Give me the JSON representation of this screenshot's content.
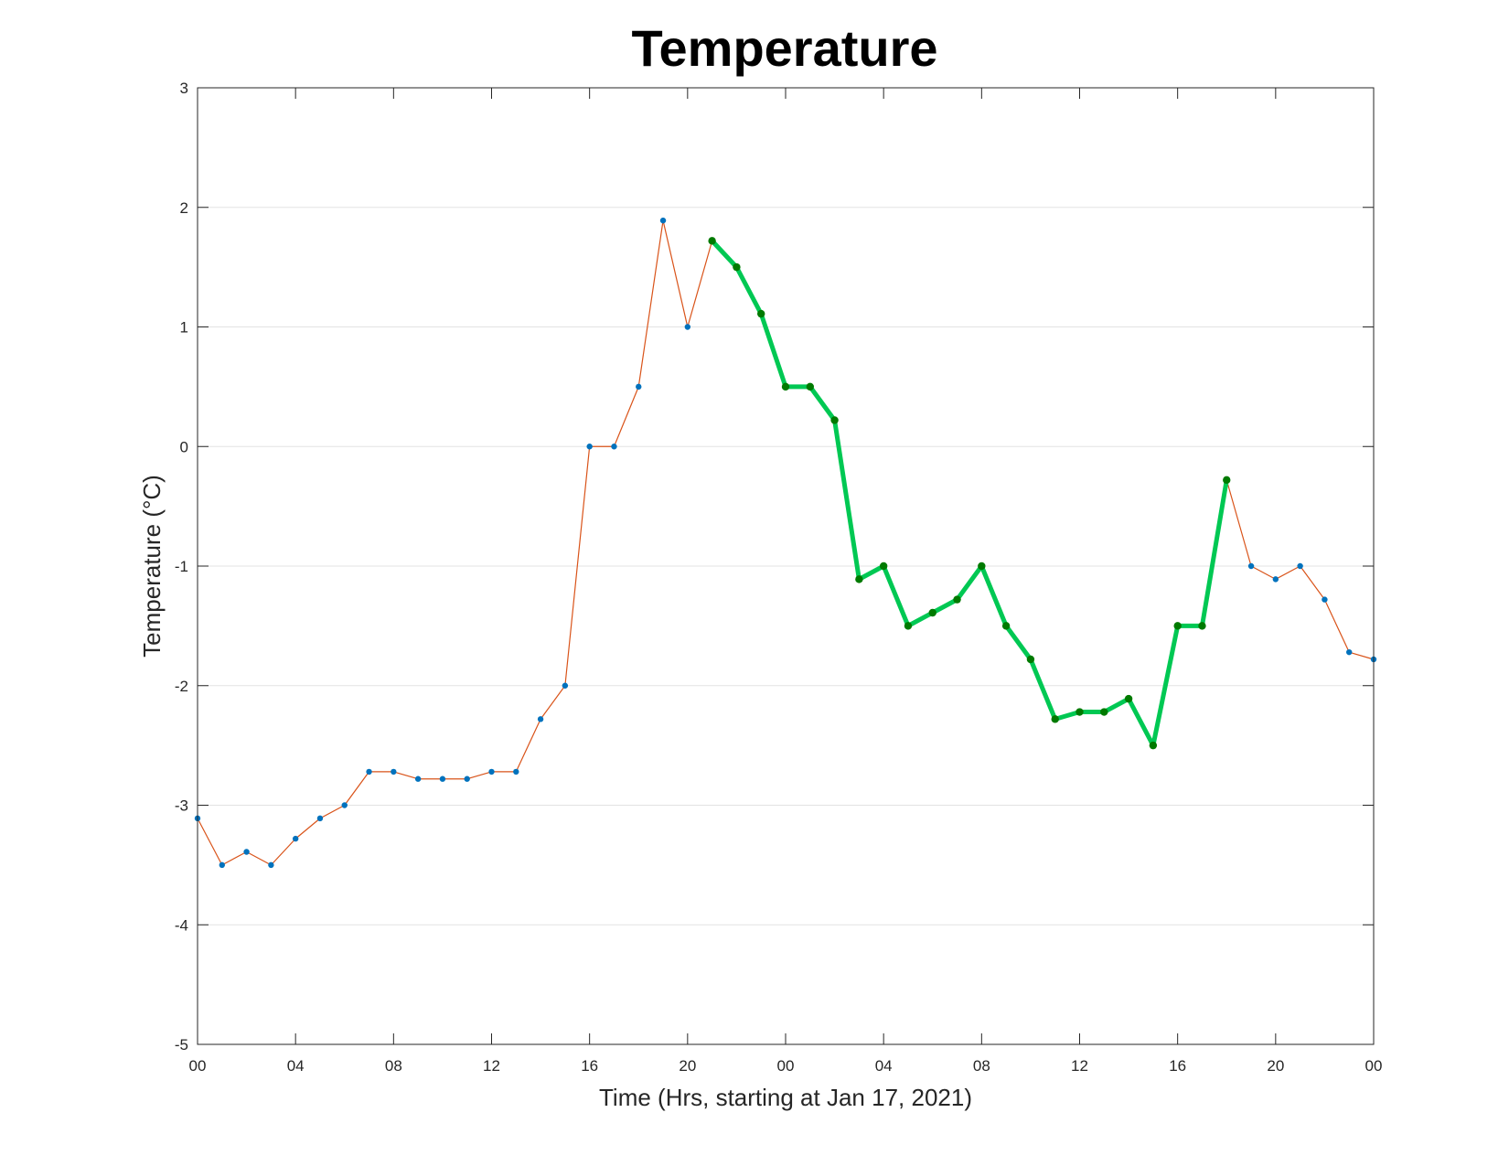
{
  "chart_data": {
    "type": "line",
    "title": "Temperature",
    "xlabel": "Time (Hrs, starting at Jan 17, 2021)",
    "ylabel": "Temperature (°C)",
    "x_tick_labels": [
      "00",
      "04",
      "08",
      "12",
      "16",
      "20",
      "00",
      "04",
      "08",
      "12",
      "16",
      "20",
      "00"
    ],
    "x_tick_hours": [
      0,
      4,
      8,
      12,
      16,
      20,
      24,
      28,
      32,
      36,
      40,
      44,
      48
    ],
    "xlim": [
      0,
      48
    ],
    "ylim": [
      -5,
      3
    ],
    "y_ticks": [
      -5,
      -4,
      -3,
      -2,
      -1,
      0,
      1,
      2,
      3
    ],
    "grid": "horizontal",
    "series": [
      {
        "role": "all-observations",
        "color": "#D95319",
        "marker_color": "#0072BD",
        "x": [
          0,
          1,
          2,
          3,
          4,
          5,
          6,
          7,
          8,
          9,
          10,
          11,
          12,
          13,
          14,
          15,
          16,
          17,
          18,
          19,
          20,
          21,
          22,
          23,
          24,
          25,
          26,
          27,
          28,
          29,
          30,
          31,
          32,
          33,
          34,
          35,
          36,
          37,
          38,
          39,
          40,
          41,
          42,
          43,
          44,
          45,
          46,
          47,
          48
        ],
        "y": [
          -3.11,
          -3.5,
          -3.39,
          -3.5,
          -3.28,
          -3.11,
          -3.0,
          -2.72,
          -2.72,
          -2.78,
          -2.78,
          -2.78,
          -2.72,
          -2.72,
          -2.28,
          -2.0,
          0.0,
          0.0,
          0.5,
          1.89,
          1.0,
          1.72,
          1.5,
          1.11,
          0.5,
          0.5,
          0.22,
          -1.11,
          -1.0,
          -1.5,
          -1.39,
          -1.28,
          -1.0,
          -1.5,
          -1.78,
          -2.28,
          -2.22,
          -2.22,
          -2.11,
          -2.5,
          -1.5,
          -1.5,
          -0.28,
          -1.0,
          -1.11,
          -1.0,
          -1.28,
          -1.72,
          -1.78
        ]
      },
      {
        "role": "highlighted-segment",
        "color": "#00C853",
        "marker_color": "#007A00",
        "x": [
          21,
          22,
          23,
          24,
          25,
          26,
          27,
          28,
          29,
          30,
          31,
          32,
          33,
          34,
          35,
          36,
          37,
          38,
          39,
          40,
          41,
          42
        ],
        "y": [
          1.72,
          1.5,
          1.11,
          0.5,
          0.5,
          0.22,
          -1.11,
          -1.0,
          -1.5,
          -1.39,
          -1.28,
          -1.0,
          -1.5,
          -1.78,
          -2.28,
          -2.22,
          -2.22,
          -2.11,
          -2.5,
          -1.5,
          -1.5,
          -0.28
        ]
      }
    ]
  }
}
